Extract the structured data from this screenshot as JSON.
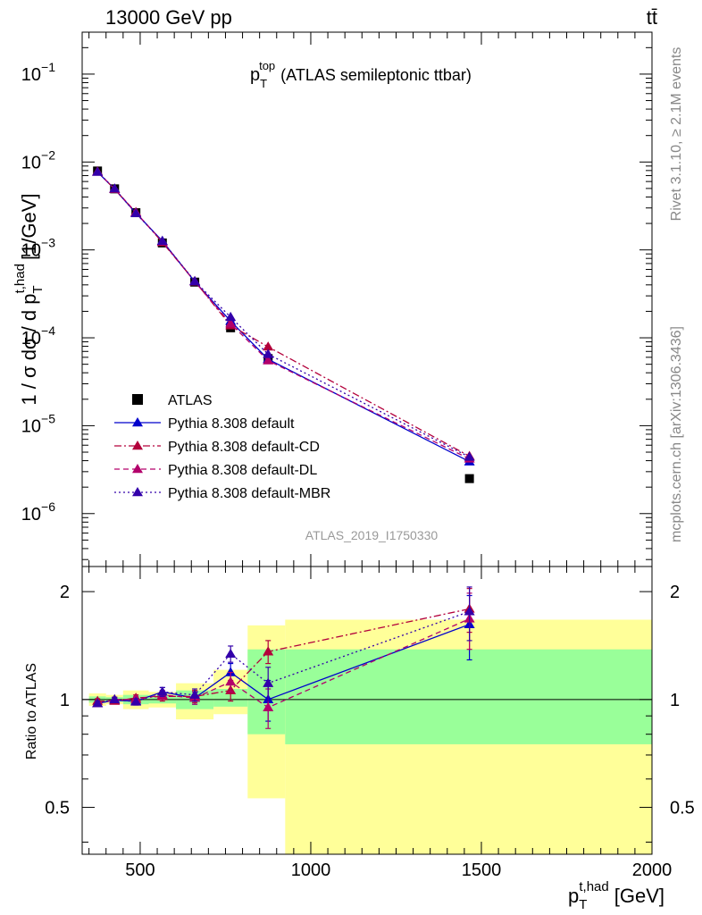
{
  "header": {
    "left": "13000 GeV pp",
    "right": "tt̄"
  },
  "side": {
    "rivet": "Rivet 3.1.10, ≥ 2.1M events",
    "mcplots": "mcplots.cern.ch [arXiv:1306.3436]"
  },
  "analysis_id": "ATLAS_2019_I1750330",
  "chart_data": [
    {
      "type": "scatter",
      "title": "p_T^top (ATLAS semileptonic ttbar)",
      "title_main": "p",
      "title_sub": "T",
      "title_sup": "top",
      "title_rest": "(ATLAS semileptonic ttbar)",
      "ylabel": "1 / σ dσ / d p_T^t,had [1/GeV]",
      "ylabel_pre": "1 / σ dσ / d p",
      "ylabel_sub": "T",
      "ylabel_sup": "t,had",
      "ylabel_post": "[1/GeV]",
      "yscale": "log",
      "ylim": [
        2.5e-07,
        0.3
      ],
      "xlim": [
        330,
        2000
      ],
      "ytick_exponents": [
        -6,
        -5,
        -4,
        -3,
        -2,
        -1
      ],
      "ytick_base": "10",
      "legend_position": "bottom-left",
      "x": [
        375,
        425,
        487.5,
        565,
        660,
        765,
        875,
        1465
      ],
      "series": [
        {
          "name": "ATLAS",
          "marker": "square",
          "color": "#000000",
          "values": [
            0.0079,
            0.00495,
            0.00265,
            0.0012,
            0.00043,
            0.00013,
            5.8e-05,
            2.5e-06
          ]
        },
        {
          "name": "Pythia 8.308 default",
          "marker": "triangle",
          "color": "#0000cc",
          "dash": "",
          "values": [
            0.0077,
            0.00492,
            0.00262,
            0.00126,
            0.000435,
            0.000155,
            5.7e-05,
            3.9e-06
          ]
        },
        {
          "name": "Pythia 8.308 default-CD",
          "marker": "triangle",
          "color": "#b3003b",
          "dash": "8,3,2,3",
          "values": [
            0.0078,
            0.0049,
            0.00268,
            0.00122,
            0.00044,
            0.000138,
            7.9e-05,
            4.5e-06
          ]
        },
        {
          "name": "Pythia 8.308 default-DL",
          "marker": "triangle",
          "color": "#b3006b",
          "dash": "6,4",
          "values": [
            0.0077,
            0.00495,
            0.00266,
            0.00124,
            0.000435,
            0.000145,
            5.5e-05,
            4.2e-06
          ]
        },
        {
          "name": "Pythia 8.308 default-MBR",
          "marker": "triangle",
          "color": "#3300aa",
          "dash": "2,3",
          "values": [
            0.0077,
            0.00497,
            0.0026,
            0.00126,
            0.00044,
            0.000172,
            6.5e-05,
            4.4e-06
          ]
        }
      ]
    },
    {
      "type": "scatter",
      "ylabel": "Ratio to ATLAS",
      "xlabel": "p_T^t,had [GeV]",
      "xlabel_main": "p",
      "xlabel_sub": "T",
      "xlabel_sup": "t,had",
      "xlabel_unit": "[GeV]",
      "yscale": "log",
      "ylim": [
        0.37,
        2.35
      ],
      "xlim": [
        330,
        2000
      ],
      "yticks": [
        "0.5",
        "1",
        "2"
      ],
      "xticks": [
        "500",
        "1000",
        "1500",
        "2000"
      ],
      "bin_edges": [
        350,
        400,
        450,
        525,
        605,
        715,
        815,
        925,
        2000
      ],
      "band_yellow": [
        [
          0.96,
          1.04
        ],
        [
          0.97,
          1.03
        ],
        [
          0.94,
          1.06
        ],
        [
          0.95,
          1.05
        ],
        [
          0.88,
          1.11
        ],
        [
          0.91,
          1.21
        ],
        [
          0.53,
          1.61
        ],
        [
          0.36,
          1.67
        ]
      ],
      "band_green": [
        [
          0.98,
          1.02
        ],
        [
          0.985,
          1.015
        ],
        [
          0.97,
          1.03
        ],
        [
          0.975,
          1.025
        ],
        [
          0.94,
          1.06
        ],
        [
          0.955,
          1.07
        ],
        [
          0.8,
          1.38
        ],
        [
          0.75,
          1.38
        ]
      ],
      "x": [
        375,
        425,
        487.5,
        565,
        660,
        765,
        875,
        1465
      ],
      "series": [
        {
          "name": "Pythia 8.308 default",
          "color": "#0000cc",
          "dash": "",
          "values": [
            0.975,
            0.995,
            0.99,
            1.05,
            1.01,
            1.19,
            1.0,
            1.62
          ],
          "errors": [
            0.015,
            0.015,
            0.02,
            0.03,
            0.04,
            0.07,
            0.13,
            0.33
          ]
        },
        {
          "name": "Pythia 8.308 default-CD",
          "color": "#b3003b",
          "dash": "8,3,2,3",
          "values": [
            0.99,
            0.99,
            1.01,
            1.02,
            1.02,
            1.06,
            1.36,
            1.79
          ],
          "errors": [
            0.015,
            0.015,
            0.02,
            0.03,
            0.04,
            0.07,
            0.1,
            0.25
          ]
        },
        {
          "name": "Pythia 8.308 default-DL",
          "color": "#b3006b",
          "dash": "6,4",
          "values": [
            0.975,
            1.0,
            1.0,
            1.03,
            1.01,
            1.12,
            0.95,
            1.68
          ],
          "errors": [
            0.015,
            0.015,
            0.02,
            0.03,
            0.04,
            0.07,
            0.12,
            0.3
          ]
        },
        {
          "name": "Pythia 8.308 default-MBR",
          "color": "#3300aa",
          "dash": "2,3",
          "values": [
            0.975,
            1.0,
            0.985,
            1.05,
            1.03,
            1.34,
            1.11,
            1.76
          ],
          "errors": [
            0.015,
            0.015,
            0.02,
            0.03,
            0.04,
            0.07,
            0.12,
            0.3
          ]
        }
      ]
    }
  ]
}
